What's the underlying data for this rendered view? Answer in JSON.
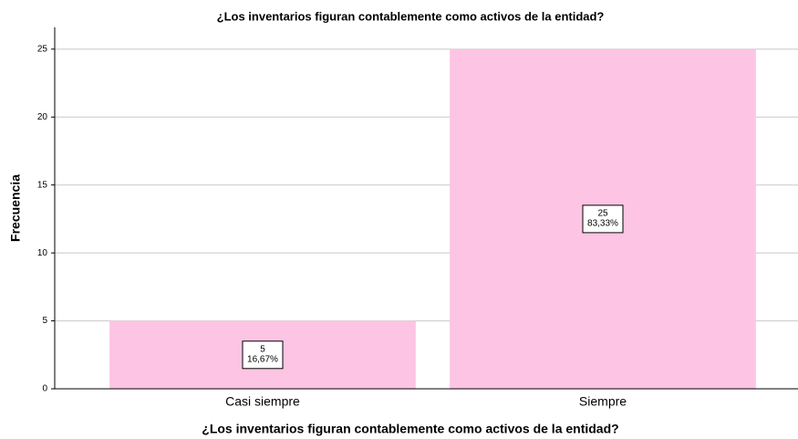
{
  "chart_data": {
    "type": "bar",
    "title": "¿Los inventarios figuran contablemente como activos de la entidad?",
    "x_label": "¿Los inventarios figuran contablemente como activos de la entidad?",
    "y_label": "Frecuencia",
    "categories": [
      "Casi siempre",
      "Siempre"
    ],
    "values": [
      5,
      25
    ],
    "percentages": [
      16.67,
      83.33
    ],
    "percentage_labels": [
      "16,67%",
      "83,33%"
    ],
    "color": "#fdc4e3",
    "ylim": [
      0,
      26.6
    ],
    "yticks": [
      0,
      5,
      10,
      15,
      20,
      25
    ],
    "grid": true
  }
}
